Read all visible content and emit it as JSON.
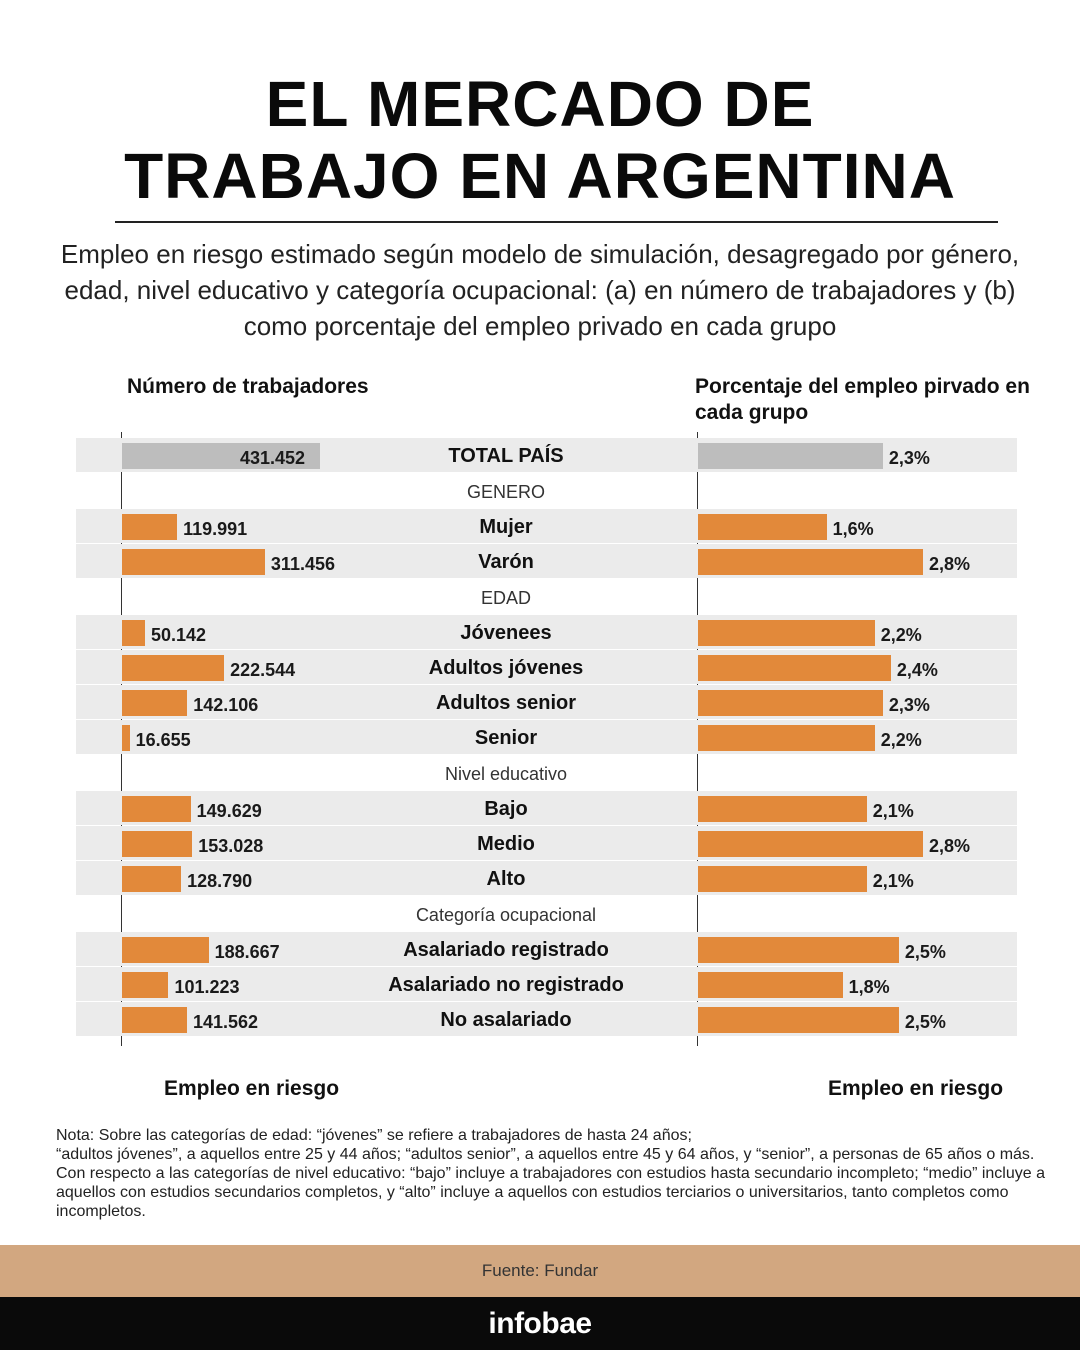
{
  "title": {
    "line1": "EL MERCADO DE",
    "line2": "TRABAJO EN ARGENTINA"
  },
  "subtitle": "Empleo en riesgo estimado según modelo de simulación, desagregado por género, edad, nivel educativo y categoría ocupacional: (a) en número de trabajadores y (b) como porcentaje del empleo privado en cada grupo",
  "left_header": "Número de trabajadores",
  "right_header": "Porcentaje del empleo pirvado en cada grupo",
  "left_footer": "Empleo en riesgo",
  "right_footer": "Empleo en riesgo",
  "colors": {
    "bar": "#e2893a",
    "total_bar": "#bdbdbd",
    "row_bg": "#ebebeb",
    "source_band": "#d2a780"
  },
  "chart_data": [
    {
      "type": "bar",
      "orientation": "horizontal",
      "title": "Número de trabajadores",
      "xlabel": "Empleo en riesgo",
      "xlim": [
        0,
        431452
      ],
      "categories": [
        "TOTAL PAÍS",
        "Mujer",
        "Varón",
        "Jóvenees",
        "Adultos jóvenes",
        "Adultos senior",
        "Senior",
        "Bajo",
        "Medio",
        "Alto",
        "Asalariado registrado",
        "Asalariado no registrado",
        "No asalariado"
      ],
      "values": [
        431452,
        119991,
        311456,
        50142,
        222544,
        142106,
        16655,
        149629,
        153028,
        128790,
        188667,
        101223,
        141562
      ],
      "labels": [
        "431.452",
        "119.991",
        "311.456",
        "50.142",
        "222.544",
        "142.106",
        "16.655",
        "149.629",
        "153.028",
        "128.790",
        "188.667",
        "101.223",
        "141.562"
      ]
    },
    {
      "type": "bar",
      "orientation": "horizontal",
      "title": "Porcentaje del empleo pirvado en cada grupo",
      "xlabel": "Empleo en riesgo",
      "xlim": [
        0,
        2.8
      ],
      "categories": [
        "TOTAL PAÍS",
        "Mujer",
        "Varón",
        "Jóvenees",
        "Adultos jóvenes",
        "Adultos senior",
        "Senior",
        "Bajo",
        "Medio",
        "Alto",
        "Asalariado registrado",
        "Asalariado no registrado",
        "No asalariado"
      ],
      "values": [
        2.3,
        1.6,
        2.8,
        2.2,
        2.4,
        2.3,
        2.2,
        2.1,
        2.8,
        2.1,
        2.5,
        1.8,
        2.5
      ],
      "labels": [
        "2,3%",
        "1,6%",
        "2,8%",
        "2,2%",
        "2,4%",
        "2,3%",
        "2,2%",
        "2,1%",
        "2,8%",
        "2,1%",
        "2,5%",
        "1,8%",
        "2,5%"
      ]
    }
  ],
  "groups": [
    {
      "label": "",
      "items": [
        "TOTAL PAÍS"
      ]
    },
    {
      "label": "GENERO",
      "items": [
        "Mujer",
        "Varón"
      ]
    },
    {
      "label": "EDAD",
      "items": [
        "Jóvenees",
        "Adultos jóvenes",
        "Adultos senior",
        "Senior"
      ]
    },
    {
      "label": "Nivel educativo",
      "items": [
        "Bajo",
        "Medio",
        "Alto"
      ]
    },
    {
      "label": "Categoría ocupacional",
      "items": [
        "Asalariado registrado",
        "Asalariado no registrado",
        "No asalariado"
      ]
    }
  ],
  "note": {
    "line1": "Nota: Sobre las categorías de edad: “jóvenes” se refiere a trabajadores de hasta 24 años;",
    "line2": "“adultos jóvenes”, a aquellos entre 25 y 44 años; “adultos senior”, a aquellos entre 45 y 64 años, y “senior”, a personas de 65 años o más. Con respecto a las categorías de nivel educativo: “bajo” incluye a trabajadores con estudios hasta secundario incompleto; “medio” incluye a aquellos con estudios secundarios completos, y “alto” incluye a aquellos con estudios terciarios o universitarios, tanto completos como incompletos."
  },
  "source": "Fuente: Fundar",
  "brand": "infobae"
}
